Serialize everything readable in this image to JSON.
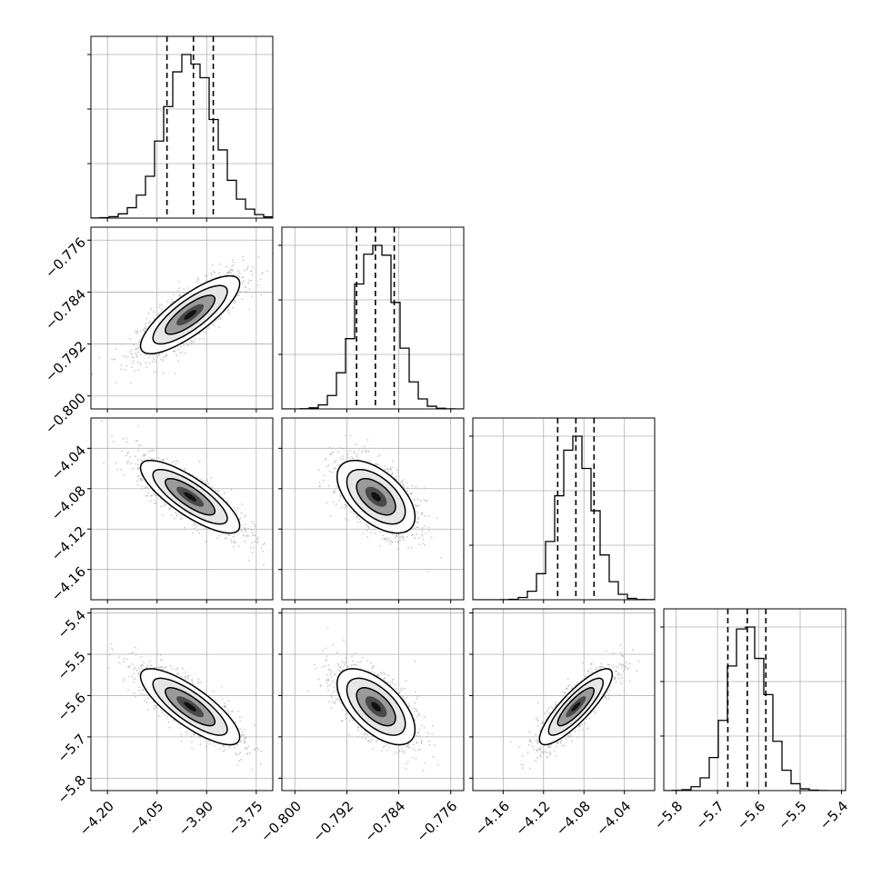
{
  "chart_data": {
    "type": "corner",
    "description_free": true,
    "grid": true,
    "colors": {
      "hist": "#000000",
      "contour": "#000000",
      "scatter": "#b4b4b4",
      "grid": "#b0b0b0"
    },
    "params": [
      {
        "range": [
          -4.25,
          -3.7
        ],
        "ticks": [
          -4.2,
          -4.05,
          -3.9,
          -3.75
        ],
        "tick_labels": [
          "−4.20",
          "−4.05",
          "−3.90",
          "−3.75"
        ],
        "quantiles": [
          -4.02,
          -3.94,
          -3.88
        ],
        "mean": -3.95,
        "sd": 0.075
      },
      {
        "range": [
          -0.802,
          -0.774
        ],
        "ticks": [
          -0.8,
          -0.792,
          -0.784,
          -0.776
        ],
        "tick_labels": [
          "−0.800",
          "−0.792",
          "−0.784",
          "−0.776"
        ],
        "quantiles": [
          -0.7905,
          -0.7876,
          -0.7847
        ],
        "mean": -0.7875,
        "sd": 0.003
      },
      {
        "range": [
          -4.19,
          -4.01
        ],
        "ticks": [
          -4.16,
          -4.12,
          -4.08,
          -4.04
        ],
        "tick_labels": [
          "−4.16",
          "−4.12",
          "−4.08",
          "−4.04"
        ],
        "quantiles": [
          -4.106,
          -4.088,
          -4.07
        ],
        "mean": -4.088,
        "sd": 0.018
      },
      {
        "range": [
          -5.83,
          -5.39
        ],
        "ticks": [
          -5.8,
          -5.7,
          -5.6,
          -5.5,
          -5.4
        ],
        "tick_labels": [
          "−5.8",
          "−5.7",
          "−5.6",
          "−5.5",
          "−5.4"
        ],
        "quantiles": [
          -5.675,
          -5.628,
          -5.583
        ],
        "mean": -5.627,
        "sd": 0.046
      }
    ],
    "correlations": {
      "1-0": 0.8,
      "2-0": -0.8,
      "2-1": -0.55,
      "3-0": -0.8,
      "3-1": -0.6,
      "3-2": 0.85
    },
    "hist_bins": 20
  }
}
